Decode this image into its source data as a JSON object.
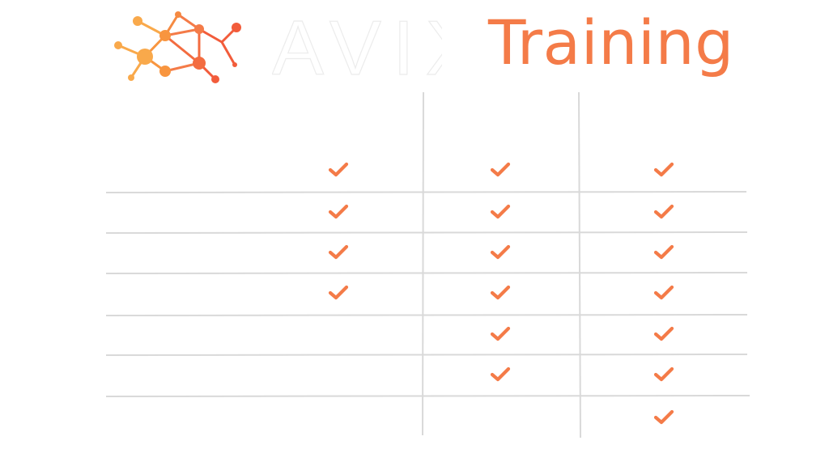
{
  "header": {
    "title": "Training",
    "brand": "AVIX",
    "logo_icon": "network-graph-logo"
  },
  "colors": {
    "accent": "#f47b48",
    "logo_light": "#f9a94b",
    "logo_dark": "#f25c3b",
    "grid_line": "#d9d9d9"
  },
  "table": {
    "columns": 3,
    "rows": 7,
    "checks": [
      [
        true,
        true,
        true
      ],
      [
        true,
        true,
        true
      ],
      [
        true,
        true,
        true
      ],
      [
        true,
        true,
        true
      ],
      [
        false,
        true,
        true
      ],
      [
        false,
        true,
        true
      ],
      [
        false,
        false,
        true
      ]
    ],
    "check_icon": "checkmark-icon"
  }
}
